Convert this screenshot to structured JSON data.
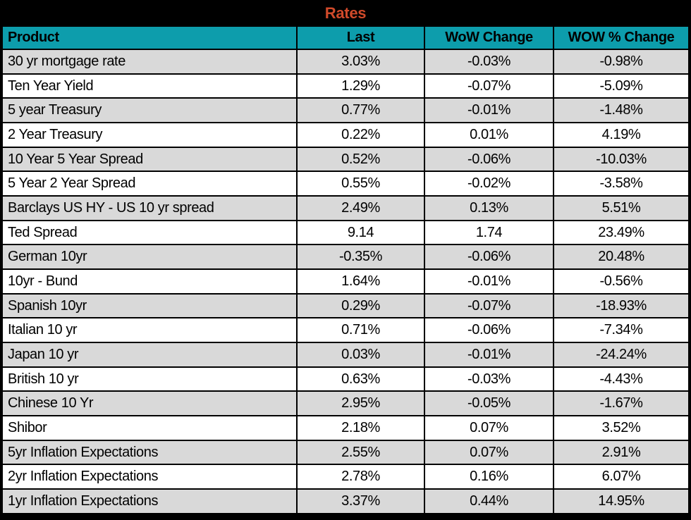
{
  "title": "Rates",
  "colors": {
    "title_text": "#D04A2A",
    "title_bg": "#000000",
    "header_bg": "#0D9DAC",
    "header_text": "#000000",
    "row_bg": "#FFFFFF",
    "row_alt_bg": "#D9D9D9",
    "grid_border": "#000000"
  },
  "chart_data": {
    "type": "table",
    "title": "Rates",
    "columns": [
      "Product",
      "Last",
      "WoW Change",
      "WOW % Change"
    ],
    "rows": [
      {
        "product": "30 yr mortgage rate",
        "last": "3.03%",
        "wow_change": "-0.03%",
        "wow_pct_change": "-0.98%"
      },
      {
        "product": "Ten Year Yield",
        "last": "1.29%",
        "wow_change": "-0.07%",
        "wow_pct_change": "-5.09%"
      },
      {
        "product": "5 year Treasury",
        "last": "0.77%",
        "wow_change": "-0.01%",
        "wow_pct_change": "-1.48%"
      },
      {
        "product": "2 Year Treasury",
        "last": "0.22%",
        "wow_change": "0.01%",
        "wow_pct_change": "4.19%"
      },
      {
        "product": "10 Year 5 Year Spread",
        "last": "0.52%",
        "wow_change": "-0.06%",
        "wow_pct_change": "-10.03%"
      },
      {
        "product": "5 Year 2 Year Spread",
        "last": "0.55%",
        "wow_change": "-0.02%",
        "wow_pct_change": "-3.58%"
      },
      {
        "product": "Barclays US HY - US 10 yr spread",
        "last": "2.49%",
        "wow_change": "0.13%",
        "wow_pct_change": "5.51%"
      },
      {
        "product": "Ted Spread",
        "last": "9.14",
        "wow_change": "1.74",
        "wow_pct_change": "23.49%"
      },
      {
        "product": "German 10yr",
        "last": "-0.35%",
        "wow_change": "-0.06%",
        "wow_pct_change": "20.48%"
      },
      {
        "product": "10yr - Bund",
        "last": "1.64%",
        "wow_change": "-0.01%",
        "wow_pct_change": "-0.56%"
      },
      {
        "product": "Spanish 10yr",
        "last": "0.29%",
        "wow_change": "-0.07%",
        "wow_pct_change": "-18.93%"
      },
      {
        "product": "Italian 10 yr",
        "last": "0.71%",
        "wow_change": "-0.06%",
        "wow_pct_change": "-7.34%"
      },
      {
        "product": "Japan 10 yr",
        "last": "0.03%",
        "wow_change": "-0.01%",
        "wow_pct_change": "-24.24%"
      },
      {
        "product": "British 10 yr",
        "last": "0.63%",
        "wow_change": "-0.03%",
        "wow_pct_change": "-4.43%"
      },
      {
        "product": "Chinese 10 Yr",
        "last": "2.95%",
        "wow_change": "-0.05%",
        "wow_pct_change": "-1.67%"
      },
      {
        "product": "Shibor",
        "last": "2.18%",
        "wow_change": "0.07%",
        "wow_pct_change": "3.52%"
      },
      {
        "product": "5yr Inflation Expectations",
        "last": "2.55%",
        "wow_change": "0.07%",
        "wow_pct_change": "2.91%"
      },
      {
        "product": "2yr Inflation Expectations",
        "last": "2.78%",
        "wow_change": "0.16%",
        "wow_pct_change": "6.07%"
      },
      {
        "product": "1yr Inflation Expectations",
        "last": "3.37%",
        "wow_change": "0.44%",
        "wow_pct_change": "14.95%"
      }
    ]
  }
}
